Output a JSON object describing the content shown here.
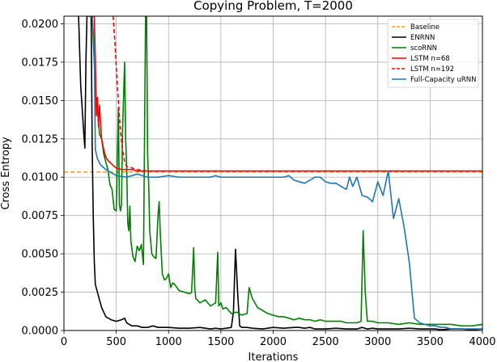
{
  "chart_data": {
    "type": "line",
    "title": "Copying Problem, T=2000",
    "xlabel": "Iterations",
    "ylabel": "Cross Entropy",
    "xlim": [
      0,
      4000
    ],
    "ylim": [
      0,
      0.0205
    ],
    "xticks": [
      0,
      500,
      1000,
      1500,
      2000,
      2500,
      3000,
      3500,
      4000
    ],
    "xtick_labels": [
      "0",
      "500",
      "1000",
      "1500",
      "2000",
      "2500",
      "3000",
      "3500",
      "4000"
    ],
    "yticks": [
      0,
      0.0025,
      0.005,
      0.0075,
      0.01,
      0.0125,
      0.015,
      0.0175,
      0.02
    ],
    "ytick_labels": [
      "0.0000",
      "0.0025",
      "0.0050",
      "0.0075",
      "0.0100",
      "0.0125",
      "0.0150",
      "0.0175",
      "0.0200"
    ],
    "grid": true,
    "legend_position": "top-right",
    "series": [
      {
        "name": "Baseline",
        "color": "#ffa500",
        "dash": "dashed",
        "x": [
          0,
          4000
        ],
        "y": [
          0.01033,
          0.01033
        ]
      },
      {
        "name": "ENRNN",
        "color": "#000000",
        "dash": "solid",
        "x": [
          140,
          160,
          190,
          200,
          210,
          220,
          240,
          260,
          270,
          280,
          290,
          300,
          320,
          340,
          360,
          380,
          400,
          450,
          500,
          550,
          580,
          600,
          650,
          700,
          750,
          800,
          850,
          900,
          1000,
          1100,
          1200,
          1300,
          1350,
          1400,
          1450,
          1500,
          1550,
          1600,
          1620,
          1640,
          1660,
          1680,
          1700,
          1750,
          1800,
          1900,
          2000,
          2100,
          2200,
          2250,
          2300,
          2350,
          2400,
          2500,
          2600,
          2700,
          2800,
          2850,
          2900,
          2950,
          3000,
          3100,
          3200,
          3300,
          3400,
          3500,
          3550,
          3600,
          3700,
          3800,
          3900,
          4000
        ],
        "y": [
          0.0205,
          0.016,
          0.0128,
          0.0119,
          0.0175,
          0.0205,
          0.0205,
          0.0205,
          0.012,
          0.0075,
          0.0045,
          0.003,
          0.0025,
          0.002,
          0.0015,
          0.0012,
          0.0009,
          0.0007,
          0.0006,
          0.0007,
          0.0008,
          0.0005,
          0.0003,
          0.0003,
          0.0002,
          0.0002,
          0.0003,
          0.0002,
          0.0002,
          0.00015,
          0.00015,
          0.0002,
          0.00015,
          0.0001,
          0.00015,
          0.0001,
          0.00015,
          0.0002,
          0.0012,
          0.0053,
          0.0025,
          0.0003,
          0.0002,
          0.0002,
          0.00015,
          0.0001,
          0.0002,
          0.00015,
          0.0002,
          0.0002,
          0.00015,
          0.0002,
          0.0001,
          0.0001,
          0.00015,
          0.0001,
          0.0001,
          0.0002,
          0.0001,
          0.00015,
          0.0001,
          0.0001,
          0.0001,
          0.00015,
          0.0001,
          0.0001,
          0.0001,
          5e-05,
          0.0001,
          0.0001,
          5e-05,
          0.0001
        ]
      },
      {
        "name": "scoRNN",
        "color": "#008000",
        "dash": "solid",
        "x": [
          250,
          270,
          290,
          300,
          320,
          340,
          360,
          380,
          400,
          420,
          440,
          460,
          480,
          500,
          520,
          530,
          540,
          550,
          560,
          580,
          590,
          600,
          610,
          620,
          630,
          640,
          660,
          680,
          700,
          720,
          740,
          760,
          780,
          790,
          800,
          810,
          820,
          840,
          860,
          880,
          900,
          910,
          920,
          940,
          960,
          980,
          1000,
          1020,
          1040,
          1060,
          1080,
          1100,
          1150,
          1200,
          1220,
          1240,
          1250,
          1260,
          1300,
          1350,
          1400,
          1450,
          1470,
          1480,
          1500,
          1520,
          1550,
          1600,
          1650,
          1700,
          1750,
          1770,
          1800,
          1850,
          1900,
          1950,
          2000,
          2050,
          2100,
          2150,
          2200,
          2250,
          2300,
          2350,
          2400,
          2450,
          2500,
          2550,
          2600,
          2650,
          2700,
          2750,
          2800,
          2840,
          2860,
          2880,
          2900,
          2950,
          3000,
          3100,
          3200,
          3300,
          3400,
          3500,
          3550,
          3600,
          3700,
          3800,
          3900,
          4000
        ],
        "y": [
          0.0205,
          0.0205,
          0.0175,
          0.0155,
          0.0145,
          0.0128,
          0.0125,
          0.0115,
          0.011,
          0.0105,
          0.0095,
          0.0092,
          0.0079,
          0.0078,
          0.0145,
          0.0082,
          0.0078,
          0.0082,
          0.013,
          0.0175,
          0.0125,
          0.0105,
          0.007,
          0.0065,
          0.0081,
          0.0058,
          0.0048,
          0.0045,
          0.0055,
          0.0052,
          0.0056,
          0.0043,
          0.0205,
          0.0205,
          0.0115,
          0.0095,
          0.0065,
          0.005,
          0.0048,
          0.0047,
          0.0076,
          0.0084,
          0.0065,
          0.0037,
          0.0033,
          0.0034,
          0.0037,
          0.0028,
          0.0031,
          0.003,
          0.0028,
          0.0026,
          0.0025,
          0.0024,
          0.0025,
          0.0054,
          0.0028,
          0.0021,
          0.0018,
          0.002,
          0.0016,
          0.0018,
          0.0051,
          0.0016,
          0.0018,
          0.0014,
          0.0015,
          0.0011,
          0.0012,
          0.001,
          0.0011,
          0.0028,
          0.0021,
          0.0015,
          0.0013,
          0.0011,
          0.001,
          0.0009,
          0.0009,
          0.0008,
          0.0007,
          0.0008,
          0.0007,
          0.0007,
          0.0006,
          0.0007,
          0.0006,
          0.0006,
          0.0006,
          0.0006,
          0.0005,
          0.0005,
          0.0005,
          0.0006,
          0.0065,
          0.0025,
          0.0006,
          0.0006,
          0.0005,
          0.0005,
          0.0004,
          0.0005,
          0.0004,
          0.0004,
          0.0004,
          0.0004,
          0.0004,
          0.0003,
          0.0003,
          0.0004
        ]
      },
      {
        "name": "LSTM n=68",
        "color": "#ff0000",
        "dash": "solid",
        "x": [
          250,
          270,
          290,
          300,
          310,
          320,
          330,
          340,
          350,
          360,
          380,
          400,
          420,
          450,
          480,
          500,
          550,
          600,
          650,
          700,
          800,
          900,
          1000,
          1200,
          1500,
          2000,
          2500,
          3000,
          3500,
          4000
        ],
        "y": [
          0.0205,
          0.0205,
          0.0205,
          0.0178,
          0.014,
          0.0152,
          0.0133,
          0.0147,
          0.0135,
          0.0125,
          0.0118,
          0.0113,
          0.0111,
          0.0109,
          0.0107,
          0.0106,
          0.0105,
          0.0105,
          0.0105,
          0.0104,
          0.0104,
          0.0104,
          0.0104,
          0.0104,
          0.0104,
          0.0104,
          0.0104,
          0.0104,
          0.0104,
          0.0104
        ]
      },
      {
        "name": "LSTM n=192",
        "color": "#ff0000",
        "dash": "dashed",
        "x": [
          470,
          480,
          490,
          500,
          510,
          520,
          530,
          540,
          560,
          580,
          600,
          650,
          700,
          800,
          900,
          1000,
          1200,
          1500,
          2000,
          2500,
          3000,
          3500,
          4000
        ],
        "y": [
          0.0205,
          0.0195,
          0.0185,
          0.0172,
          0.016,
          0.015,
          0.014,
          0.013,
          0.0118,
          0.011,
          0.0107,
          0.0106,
          0.0105,
          0.0104,
          0.0104,
          0.0104,
          0.0104,
          0.0104,
          0.0104,
          0.0104,
          0.0104,
          0.0104,
          0.0104
        ]
      },
      {
        "name": "Full-Capacity uRNN",
        "color": "#1f77b4",
        "dash": "solid",
        "x": [
          250,
          270,
          290,
          300,
          320,
          350,
          400,
          450,
          500,
          600,
          700,
          800,
          900,
          1000,
          1100,
          1200,
          1300,
          1400,
          1450,
          1500,
          1600,
          1700,
          1800,
          1900,
          2000,
          2100,
          2150,
          2200,
          2250,
          2300,
          2350,
          2400,
          2450,
          2500,
          2550,
          2600,
          2650,
          2700,
          2730,
          2760,
          2800,
          2850,
          2900,
          2950,
          3000,
          3050,
          3100,
          3150,
          3200,
          3250,
          3300,
          3350,
          3400,
          3450,
          3500,
          3550,
          3600,
          3650,
          3700,
          3800,
          3900,
          4000
        ],
        "y": [
          0.0205,
          0.0205,
          0.0185,
          0.0118,
          0.0112,
          0.0108,
          0.0105,
          0.0103,
          0.0101,
          0.01,
          0.0102,
          0.01,
          0.01,
          0.0101,
          0.01,
          0.01,
          0.01,
          0.01,
          0.0101,
          0.01,
          0.01,
          0.01,
          0.01,
          0.01,
          0.01,
          0.01,
          0.0101,
          0.0098,
          0.0097,
          0.0096,
          0.0098,
          0.01,
          0.01,
          0.0097,
          0.0096,
          0.0096,
          0.0094,
          0.0092,
          0.01,
          0.0094,
          0.01,
          0.0088,
          0.0087,
          0.0084,
          0.0097,
          0.0088,
          0.0104,
          0.0073,
          0.0086,
          0.0068,
          0.0045,
          0.0008,
          0.0005,
          0.0004,
          0.0003,
          0.0003,
          0.0002,
          0.0002,
          0.0001,
          0.0001,
          0.0001,
          0.0001
        ]
      }
    ]
  }
}
